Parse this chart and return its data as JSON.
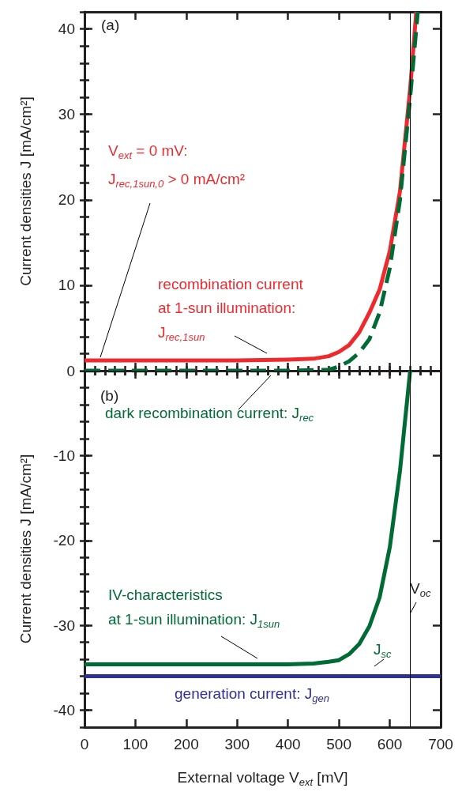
{
  "chart_data": [
    {
      "type": "line",
      "title": "(a)",
      "ylabel": "Current densities J [mA/cm²]",
      "xlim": [
        0,
        700
      ],
      "xticks": [
        0,
        100,
        200,
        300,
        400,
        500,
        600,
        700
      ],
      "ylim": [
        0,
        42
      ],
      "yticks": [
        0,
        10,
        20,
        30,
        40
      ],
      "tick_labels": "y",
      "marker": "none",
      "grid": false,
      "series": [
        {
          "name": "recombination current\nat 1-sun illumination:\nJ$_{rec,1sun}$",
          "color": "#ee2a2e",
          "line_style": "solid",
          "x": [
            0,
            100,
            200,
            300,
            400,
            450,
            480,
            500,
            520,
            540,
            560,
            580,
            600,
            620,
            640,
            652
          ],
          "values": [
            1.2,
            1.2,
            1.2,
            1.2,
            1.3,
            1.4,
            1.7,
            2.2,
            3.0,
            4.5,
            6.8,
            9.5,
            14,
            21,
            33,
            42
          ]
        },
        {
          "name": "dark recombination current: J$_{rec}$",
          "color": "#006b35",
          "line_style": "dashed",
          "x": [
            0,
            100,
            200,
            300,
            400,
            480,
            500,
            520,
            540,
            560,
            580,
            600,
            620,
            640,
            655
          ],
          "values": [
            0,
            0,
            0,
            0,
            0,
            0.1,
            0.5,
            1.1,
            2.1,
            3.7,
            6.8,
            12,
            20,
            32,
            42
          ]
        }
      ],
      "ref_lines": [
        {
          "axis": "x",
          "value": 640,
          "color": "#000000"
        }
      ],
      "annotations": [
        "V$_{ext}$ = 0 mV:\nJ$_{rec,1sun,0}$ > 0 mA/cm²"
      ]
    },
    {
      "type": "line",
      "title": "(b)",
      "xlabel": "External voltage V$_{ext}$ [mV]",
      "ylabel": "Current densities J [mA/cm²]",
      "xlim": [
        0,
        700
      ],
      "xticks": [
        0,
        100,
        200,
        300,
        400,
        500,
        600,
        700
      ],
      "ylim": [
        -42,
        0
      ],
      "yticks": [
        -40,
        -30,
        -20,
        -10
      ],
      "marker": "none",
      "grid": false,
      "series": [
        {
          "name": "IV-characteristics\nat 1-sun illumination: J$_{1sun}$",
          "color": "#006b35",
          "line_style": "solid",
          "x": [
            0,
            100,
            200,
            300,
            400,
            450,
            480,
            500,
            520,
            540,
            560,
            580,
            600,
            620,
            640
          ],
          "values": [
            -34.6,
            -34.6,
            -34.6,
            -34.6,
            -34.6,
            -34.5,
            -34.3,
            -34.1,
            -33.4,
            -32.2,
            -30.1,
            -26.7,
            -20.8,
            -11.8,
            0
          ]
        },
        {
          "name": "generation current: J$_{gen}$",
          "color": "#2e3192",
          "line_style": "solid",
          "x": [
            0,
            700
          ],
          "values": [
            -36,
            -36
          ]
        }
      ],
      "ref_lines": [
        {
          "axis": "x",
          "value": 640,
          "label": "V$_{oc}$",
          "color": "#000000"
        }
      ],
      "annotations": [
        "J$_{sc}$"
      ]
    }
  ]
}
